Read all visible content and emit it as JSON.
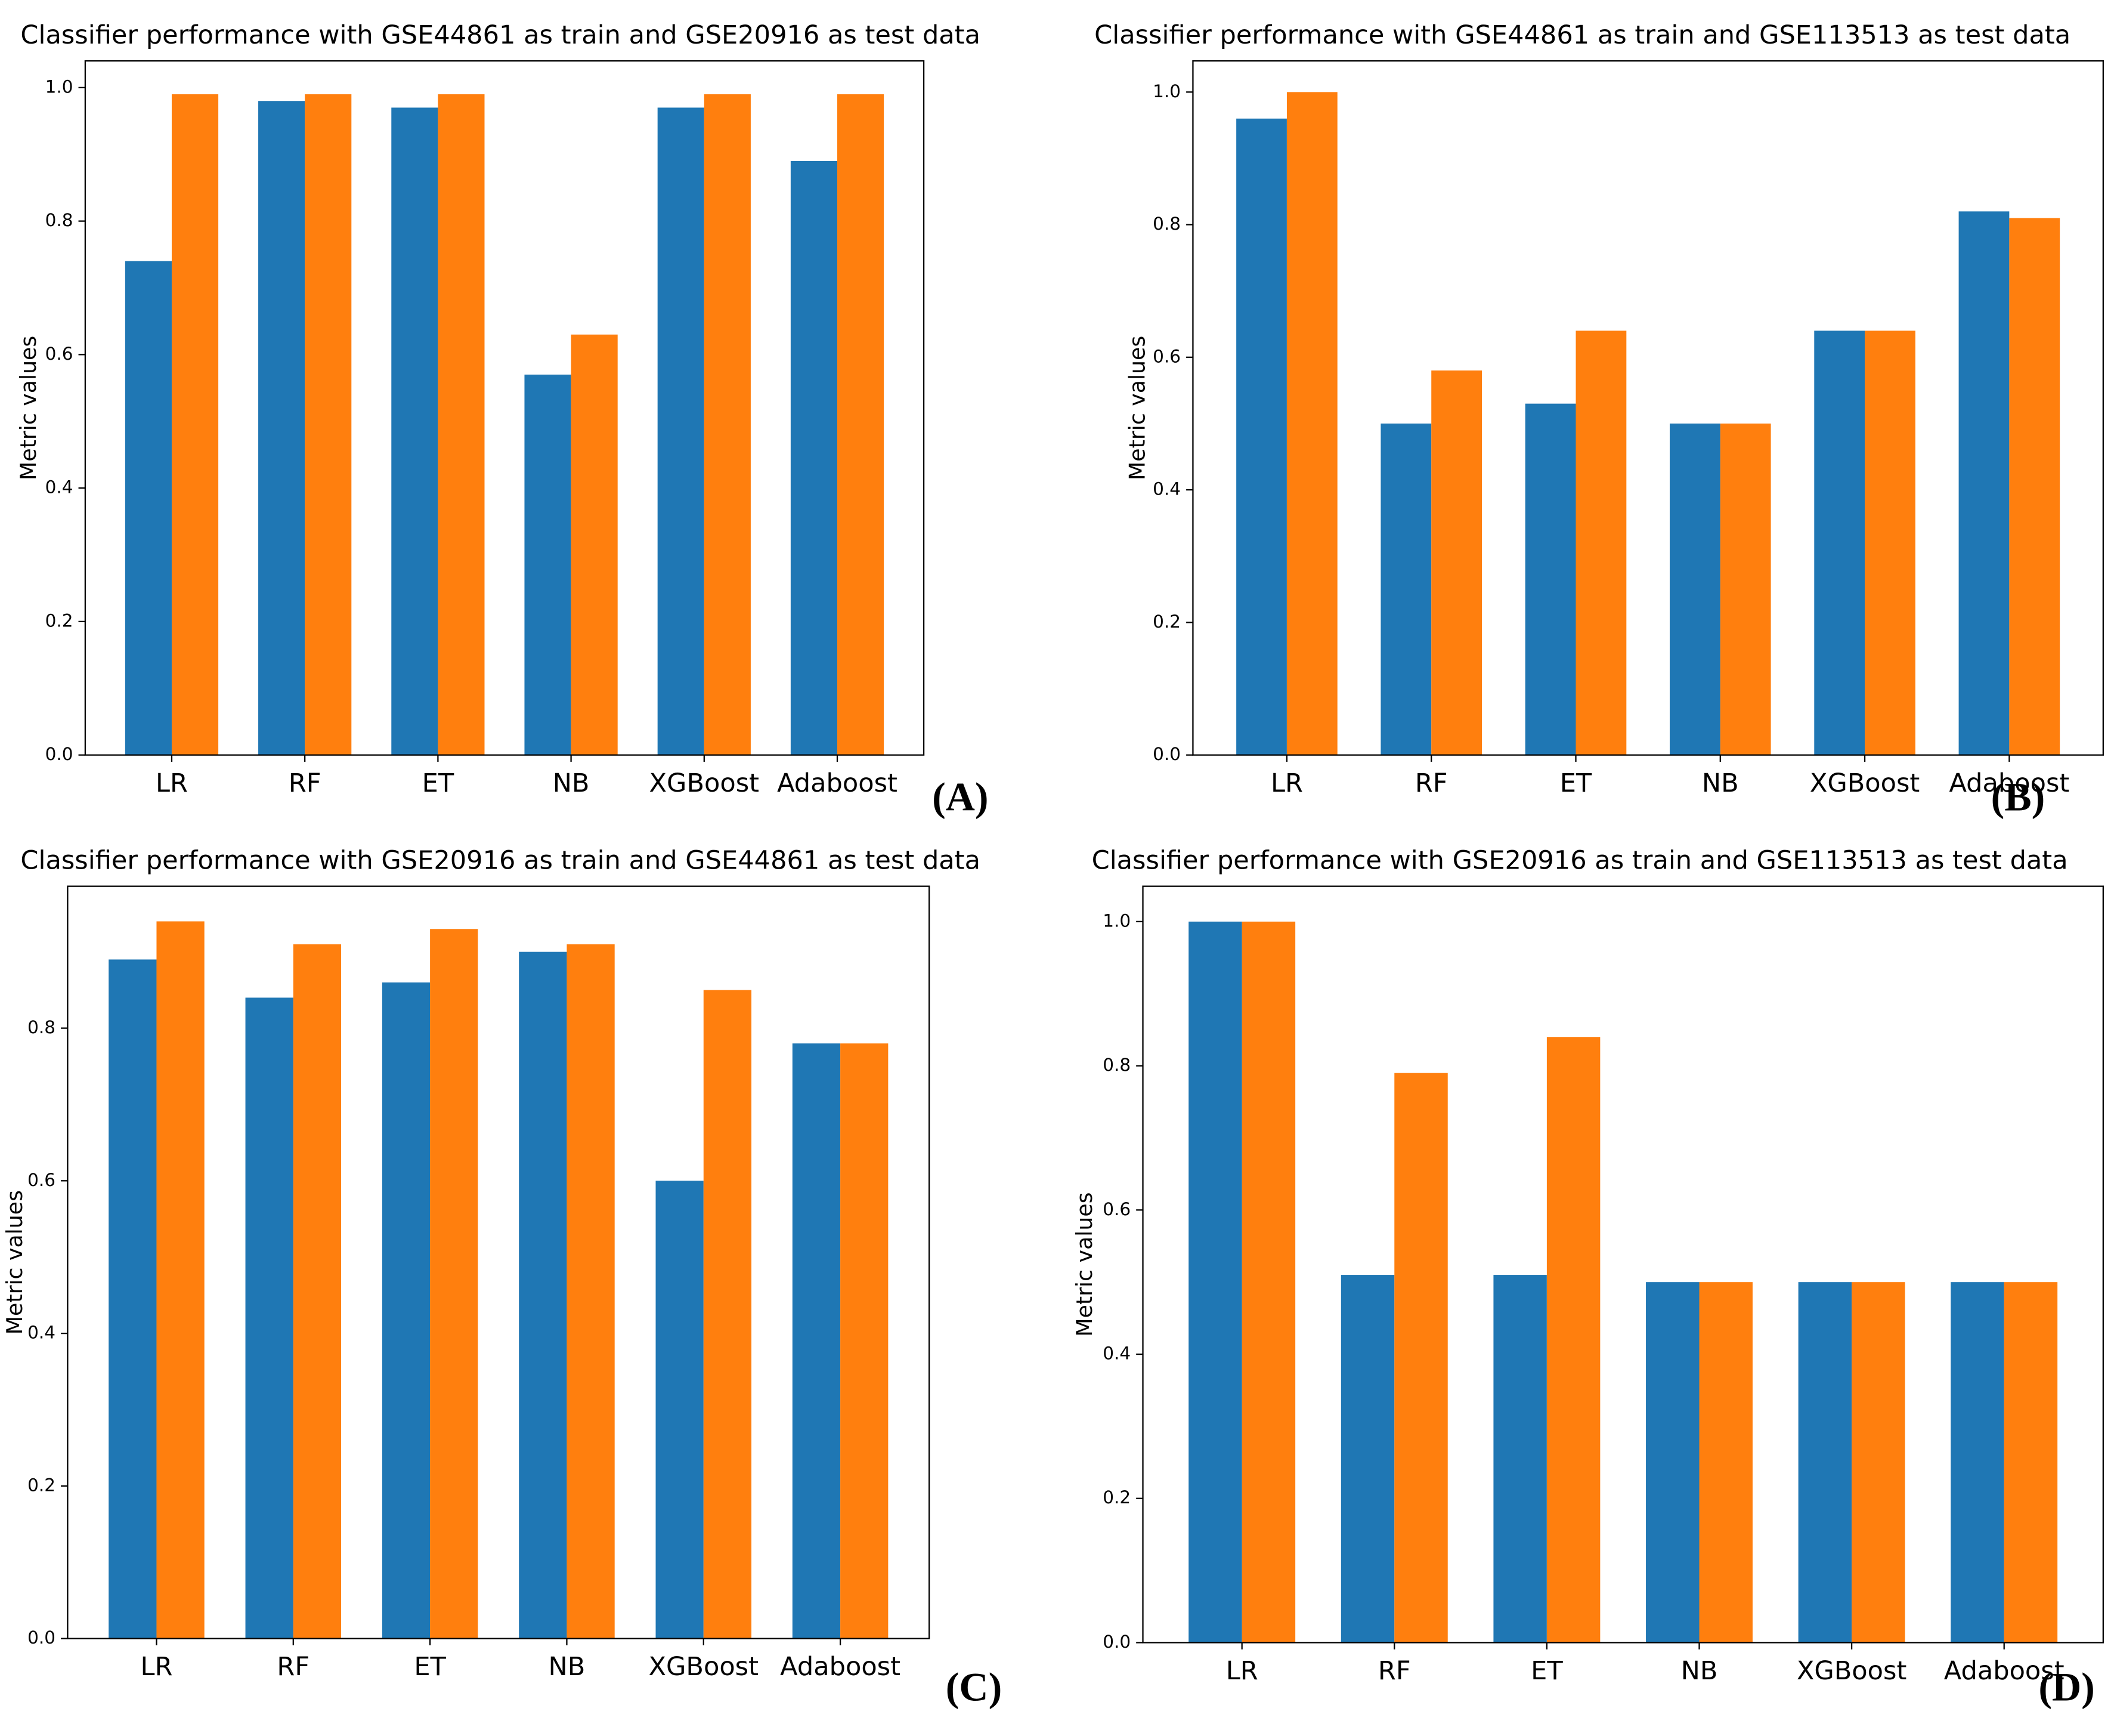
{
  "chart_data": [
    {
      "type": "bar",
      "title": "Classifier performance with GSE44861 as train and GSE20916 as test data",
      "panel": "(A)",
      "y_label": "Metric values",
      "categories": [
        "LR",
        "RF",
        "ET",
        "NB",
        "XGBoost",
        "Adaboost"
      ],
      "series": [
        {
          "color": "#1f77b4",
          "values": [
            0.74,
            0.98,
            0.97,
            0.57,
            0.97,
            0.89
          ]
        },
        {
          "color": "#ff7f0e",
          "values": [
            0.99,
            0.99,
            0.99,
            0.63,
            0.99,
            0.99
          ]
        }
      ],
      "ylim": [
        0,
        1.04
      ],
      "yticks": [
        {
          "value": 0,
          "label": "0.0"
        },
        0.2,
        0.4,
        0.6,
        0.8,
        {
          "value": 1,
          "label": "1.0"
        }
      ]
    },
    {
      "type": "bar",
      "title": "Classifier performance with GSE44861 as train and GSE113513 as test data",
      "panel": "(B)",
      "y_label": "Metric values",
      "categories": [
        "LR",
        "RF",
        "ET",
        "NB",
        "XGBoost",
        "Adaboost"
      ],
      "series": [
        {
          "color": "#1f77b4",
          "values": [
            0.96,
            0.5,
            0.53,
            0.5,
            0.64,
            0.82
          ]
        },
        {
          "color": "#ff7f0e",
          "values": [
            1.0,
            0.58,
            0.64,
            0.5,
            0.64,
            0.81
          ]
        }
      ],
      "ylim": [
        0,
        1.047
      ],
      "yticks": [
        {
          "value": 0,
          "label": "0.0"
        },
        0.2,
        0.4,
        0.6,
        0.8,
        {
          "value": 1,
          "label": "1.0"
        }
      ]
    },
    {
      "type": "bar",
      "title": "Classifier performance with GSE20916 as train and GSE44861 as test data",
      "panel": "(C)",
      "y_label": "Metric values",
      "categories": [
        "LR",
        "RF",
        "ET",
        "NB",
        "XGBoost",
        "Adaboost"
      ],
      "series": [
        {
          "color": "#1f77b4",
          "values": [
            0.89,
            0.84,
            0.86,
            0.9,
            0.6,
            0.78
          ]
        },
        {
          "color": "#ff7f0e",
          "values": [
            0.94,
            0.91,
            0.93,
            0.91,
            0.85,
            0.78
          ]
        }
      ],
      "ylim": [
        0,
        0.986
      ],
      "yticks": [
        {
          "value": 0,
          "label": "0.0"
        },
        0.2,
        0.4,
        0.6,
        0.8
      ]
    },
    {
      "type": "bar",
      "title": "Classifier performance with GSE20916 as train and GSE113513 as test data",
      "panel": "(D)",
      "y_label": "Metric values",
      "categories": [
        "LR",
        "RF",
        "ET",
        "NB",
        "XGBoost",
        "Adaboost"
      ],
      "series": [
        {
          "color": "#1f77b4",
          "values": [
            1.0,
            0.51,
            0.51,
            0.5,
            0.5,
            0.5
          ]
        },
        {
          "color": "#ff7f0e",
          "values": [
            1.0,
            0.79,
            0.84,
            0.5,
            0.5,
            0.5
          ]
        }
      ],
      "ylim": [
        0,
        1.049
      ],
      "yticks": [
        {
          "value": 0,
          "label": "0.0"
        },
        0.2,
        0.4,
        0.6,
        0.8,
        {
          "value": 1,
          "label": "1.0"
        }
      ]
    }
  ]
}
